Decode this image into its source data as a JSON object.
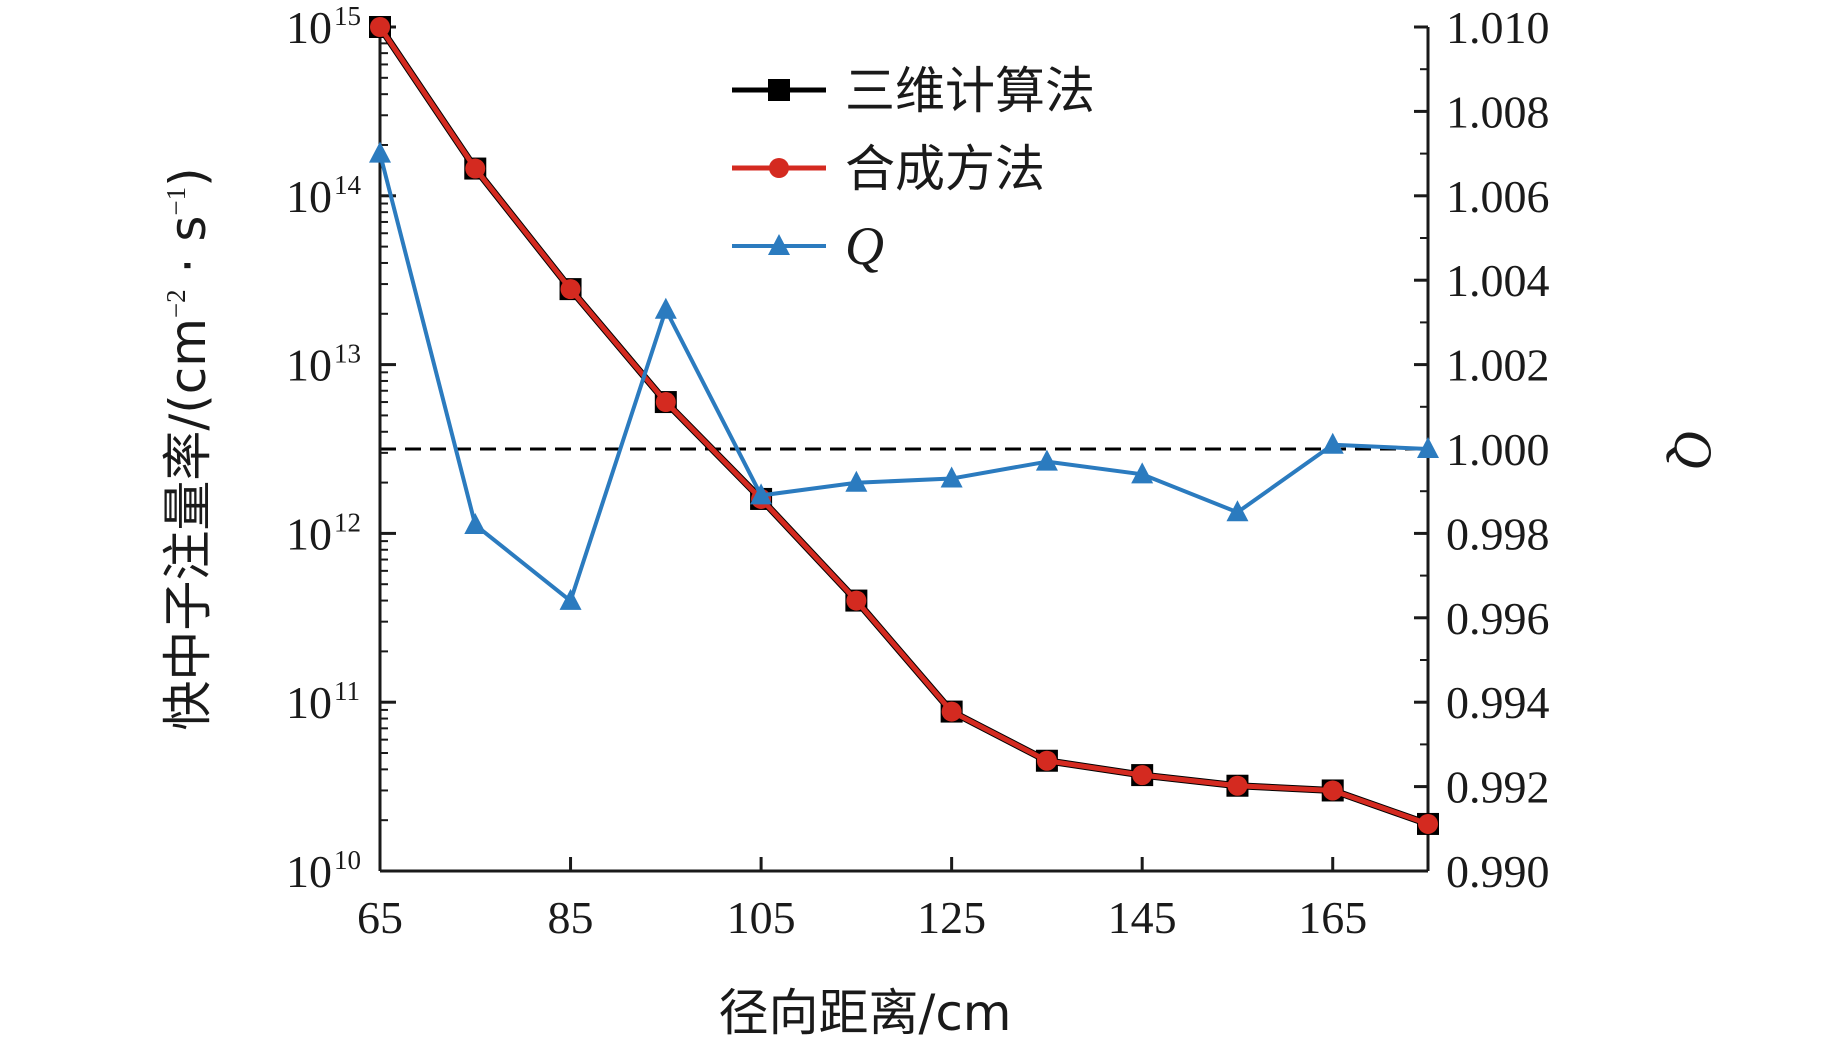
{
  "chart_data": {
    "type": "line",
    "x": [
      65,
      75,
      85,
      95,
      105,
      115,
      125,
      135,
      145,
      155,
      165,
      175
    ],
    "xlabel": "径向距离/cm",
    "xlim": [
      65,
      175
    ],
    "xticks": [
      65,
      85,
      105,
      125,
      145,
      165
    ],
    "left_axis": {
      "label_main": "快中子注量率/(cm",
      "label_sup1": "−2",
      "label_mid": " · s",
      "label_sup2": "−1",
      "label_end": ")",
      "scale": "log",
      "ylim": [
        10000000000.0,
        1000000000000000.0
      ],
      "tick_base": "10",
      "tick_exponents": [
        "10",
        "11",
        "12",
        "13",
        "14",
        "15"
      ]
    },
    "right_axis": {
      "label": "Q",
      "ylim": [
        0.99,
        1.01
      ],
      "ticks": [
        "0.990",
        "0.992",
        "0.994",
        "0.996",
        "0.998",
        "1.000",
        "1.002",
        "1.004",
        "1.006",
        "1.008",
        "1.010"
      ]
    },
    "reference_line": {
      "axis": "right",
      "y": 1.0,
      "style": "dashed",
      "color": "#000000"
    },
    "series": [
      {
        "name": "三维计算法",
        "axis": "left",
        "marker": "square",
        "color": "#000000",
        "values": [
          1000000000000000.0,
          145000000000000.0,
          28000000000000.0,
          6000000000000.0,
          1600000000000.0,
          400000000000.0,
          88000000000.0,
          45000000000.0,
          37000000000.0,
          32000000000.0,
          30000000000.0,
          19000000000.0
        ]
      },
      {
        "name": "合成方法",
        "axis": "left",
        "marker": "circle",
        "color": "#d42a20",
        "values": [
          1000000000000000.0,
          145000000000000.0,
          28000000000000.0,
          6000000000000.0,
          1600000000000.0,
          400000000000.0,
          88000000000.0,
          45000000000.0,
          37000000000.0,
          32000000000.0,
          30000000000.0,
          19000000000.0
        ]
      },
      {
        "name": "Q",
        "axis": "right",
        "marker": "triangle",
        "color": "#2b7bbf",
        "values": [
          1.007,
          0.9982,
          0.9964,
          1.0033,
          0.9989,
          0.9992,
          0.9993,
          0.9997,
          0.9994,
          0.9985,
          1.0001,
          1.0
        ]
      }
    ],
    "legend": {
      "position": "top-center",
      "entries": [
        "三维计算法",
        "合成方法",
        "Q"
      ]
    }
  }
}
